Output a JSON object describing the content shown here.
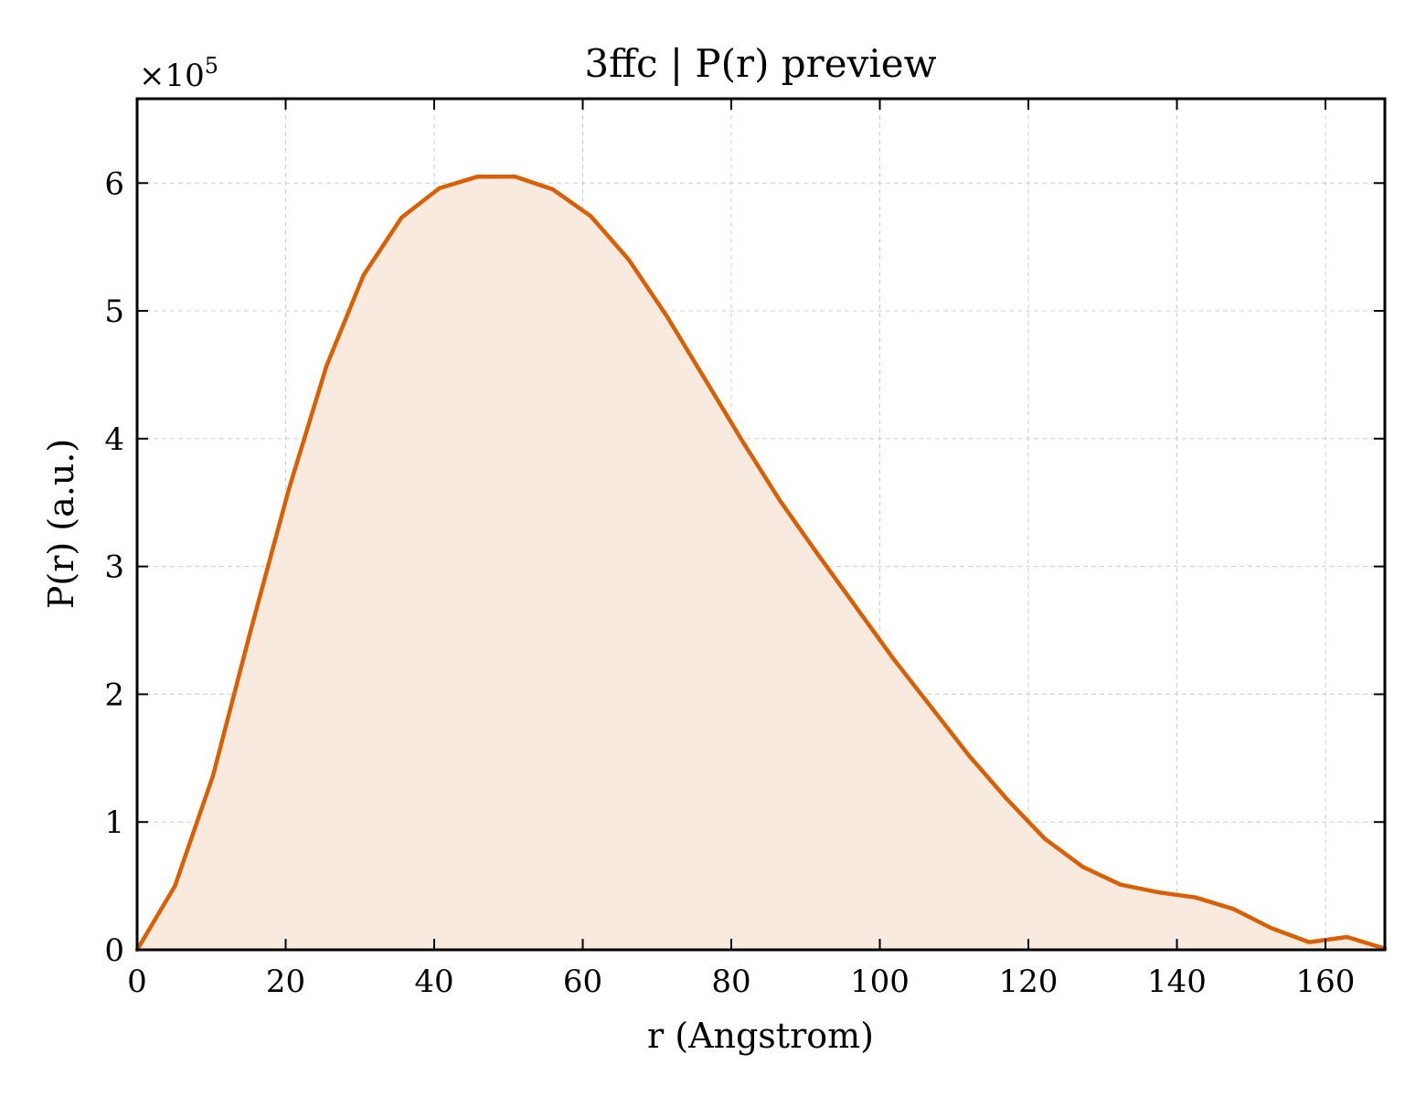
{
  "chart_data": {
    "type": "area",
    "title": "3ffc | P(r) preview",
    "xlabel": "r (Angstrom)",
    "ylabel": "P(r) (a.u.)",
    "y_multiplier": "×10",
    "y_multiplier_exponent": "5",
    "xlim": [
      0,
      168
    ],
    "ylim": [
      0,
      6.66
    ],
    "x_ticks": [
      0,
      20,
      40,
      60,
      80,
      100,
      120,
      140,
      160
    ],
    "y_ticks": [
      0,
      1,
      2,
      3,
      4,
      5,
      6
    ],
    "grid": true,
    "line_color": "#d95f02",
    "fill_color": "#f9eadf",
    "series": [
      {
        "x": [
          0,
          5.1,
          10.2,
          15.3,
          20.4,
          25.5,
          30.5,
          35.6,
          40.7,
          45.8,
          50.9,
          56.0,
          61.1,
          66.2,
          71.3,
          76.4,
          81.5,
          86.5,
          91.6,
          96.7,
          101.8,
          106.9,
          112.0,
          117.1,
          122.2,
          127.3,
          132.4,
          137.5,
          142.5,
          147.6,
          152.7,
          157.8,
          162.9,
          168.0
        ],
        "values": [
          0,
          0.5,
          1.36,
          2.5,
          3.6,
          4.57,
          5.28,
          5.73,
          5.96,
          6.05,
          6.05,
          5.95,
          5.74,
          5.4,
          4.96,
          4.47,
          3.98,
          3.52,
          3.1,
          2.69,
          2.28,
          1.9,
          1.52,
          1.18,
          0.87,
          0.65,
          0.51,
          0.45,
          0.41,
          0.32,
          0.17,
          0.06,
          0.1,
          0.01
        ]
      }
    ]
  }
}
